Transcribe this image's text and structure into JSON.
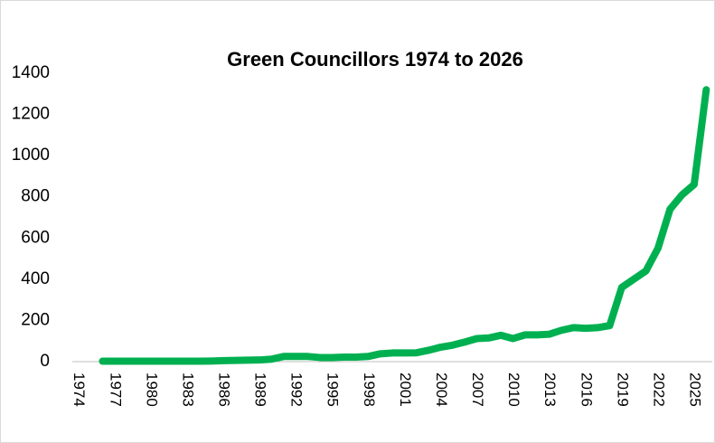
{
  "chart_data": {
    "type": "line",
    "title": "Green Councillors 1974 to 2026",
    "categories": [
      "1974",
      null,
      null,
      "1977",
      null,
      null,
      "1980",
      null,
      null,
      "1983",
      null,
      null,
      "1986",
      null,
      null,
      "1989",
      null,
      null,
      "1992",
      null,
      null,
      "1995",
      null,
      null,
      "1998",
      null,
      null,
      "2001",
      null,
      null,
      "2004",
      null,
      null,
      "2007",
      null,
      null,
      "2010",
      null,
      null,
      "2013",
      null,
      null,
      "2016",
      null,
      null,
      "2019",
      null,
      null,
      "2022",
      null,
      null,
      "2025",
      null
    ],
    "series": [
      {
        "name": "Green Councillors",
        "color": "#00b050",
        "values": [
          null,
          null,
          2,
          2,
          2,
          2,
          2,
          2,
          2,
          2,
          2,
          3,
          5,
          6,
          7,
          8,
          12,
          25,
          25,
          25,
          20,
          20,
          22,
          22,
          25,
          38,
          42,
          42,
          43,
          55,
          70,
          80,
          95,
          112,
          115,
          128,
          112,
          130,
          130,
          133,
          152,
          165,
          162,
          165,
          175,
          360,
          400,
          440,
          550,
          740,
          810,
          860,
          1320
        ]
      }
    ],
    "ylim": [
      0,
      1400
    ],
    "yticks": [
      0,
      200,
      400,
      600,
      800,
      1000,
      1200,
      1400
    ],
    "grid": false
  }
}
